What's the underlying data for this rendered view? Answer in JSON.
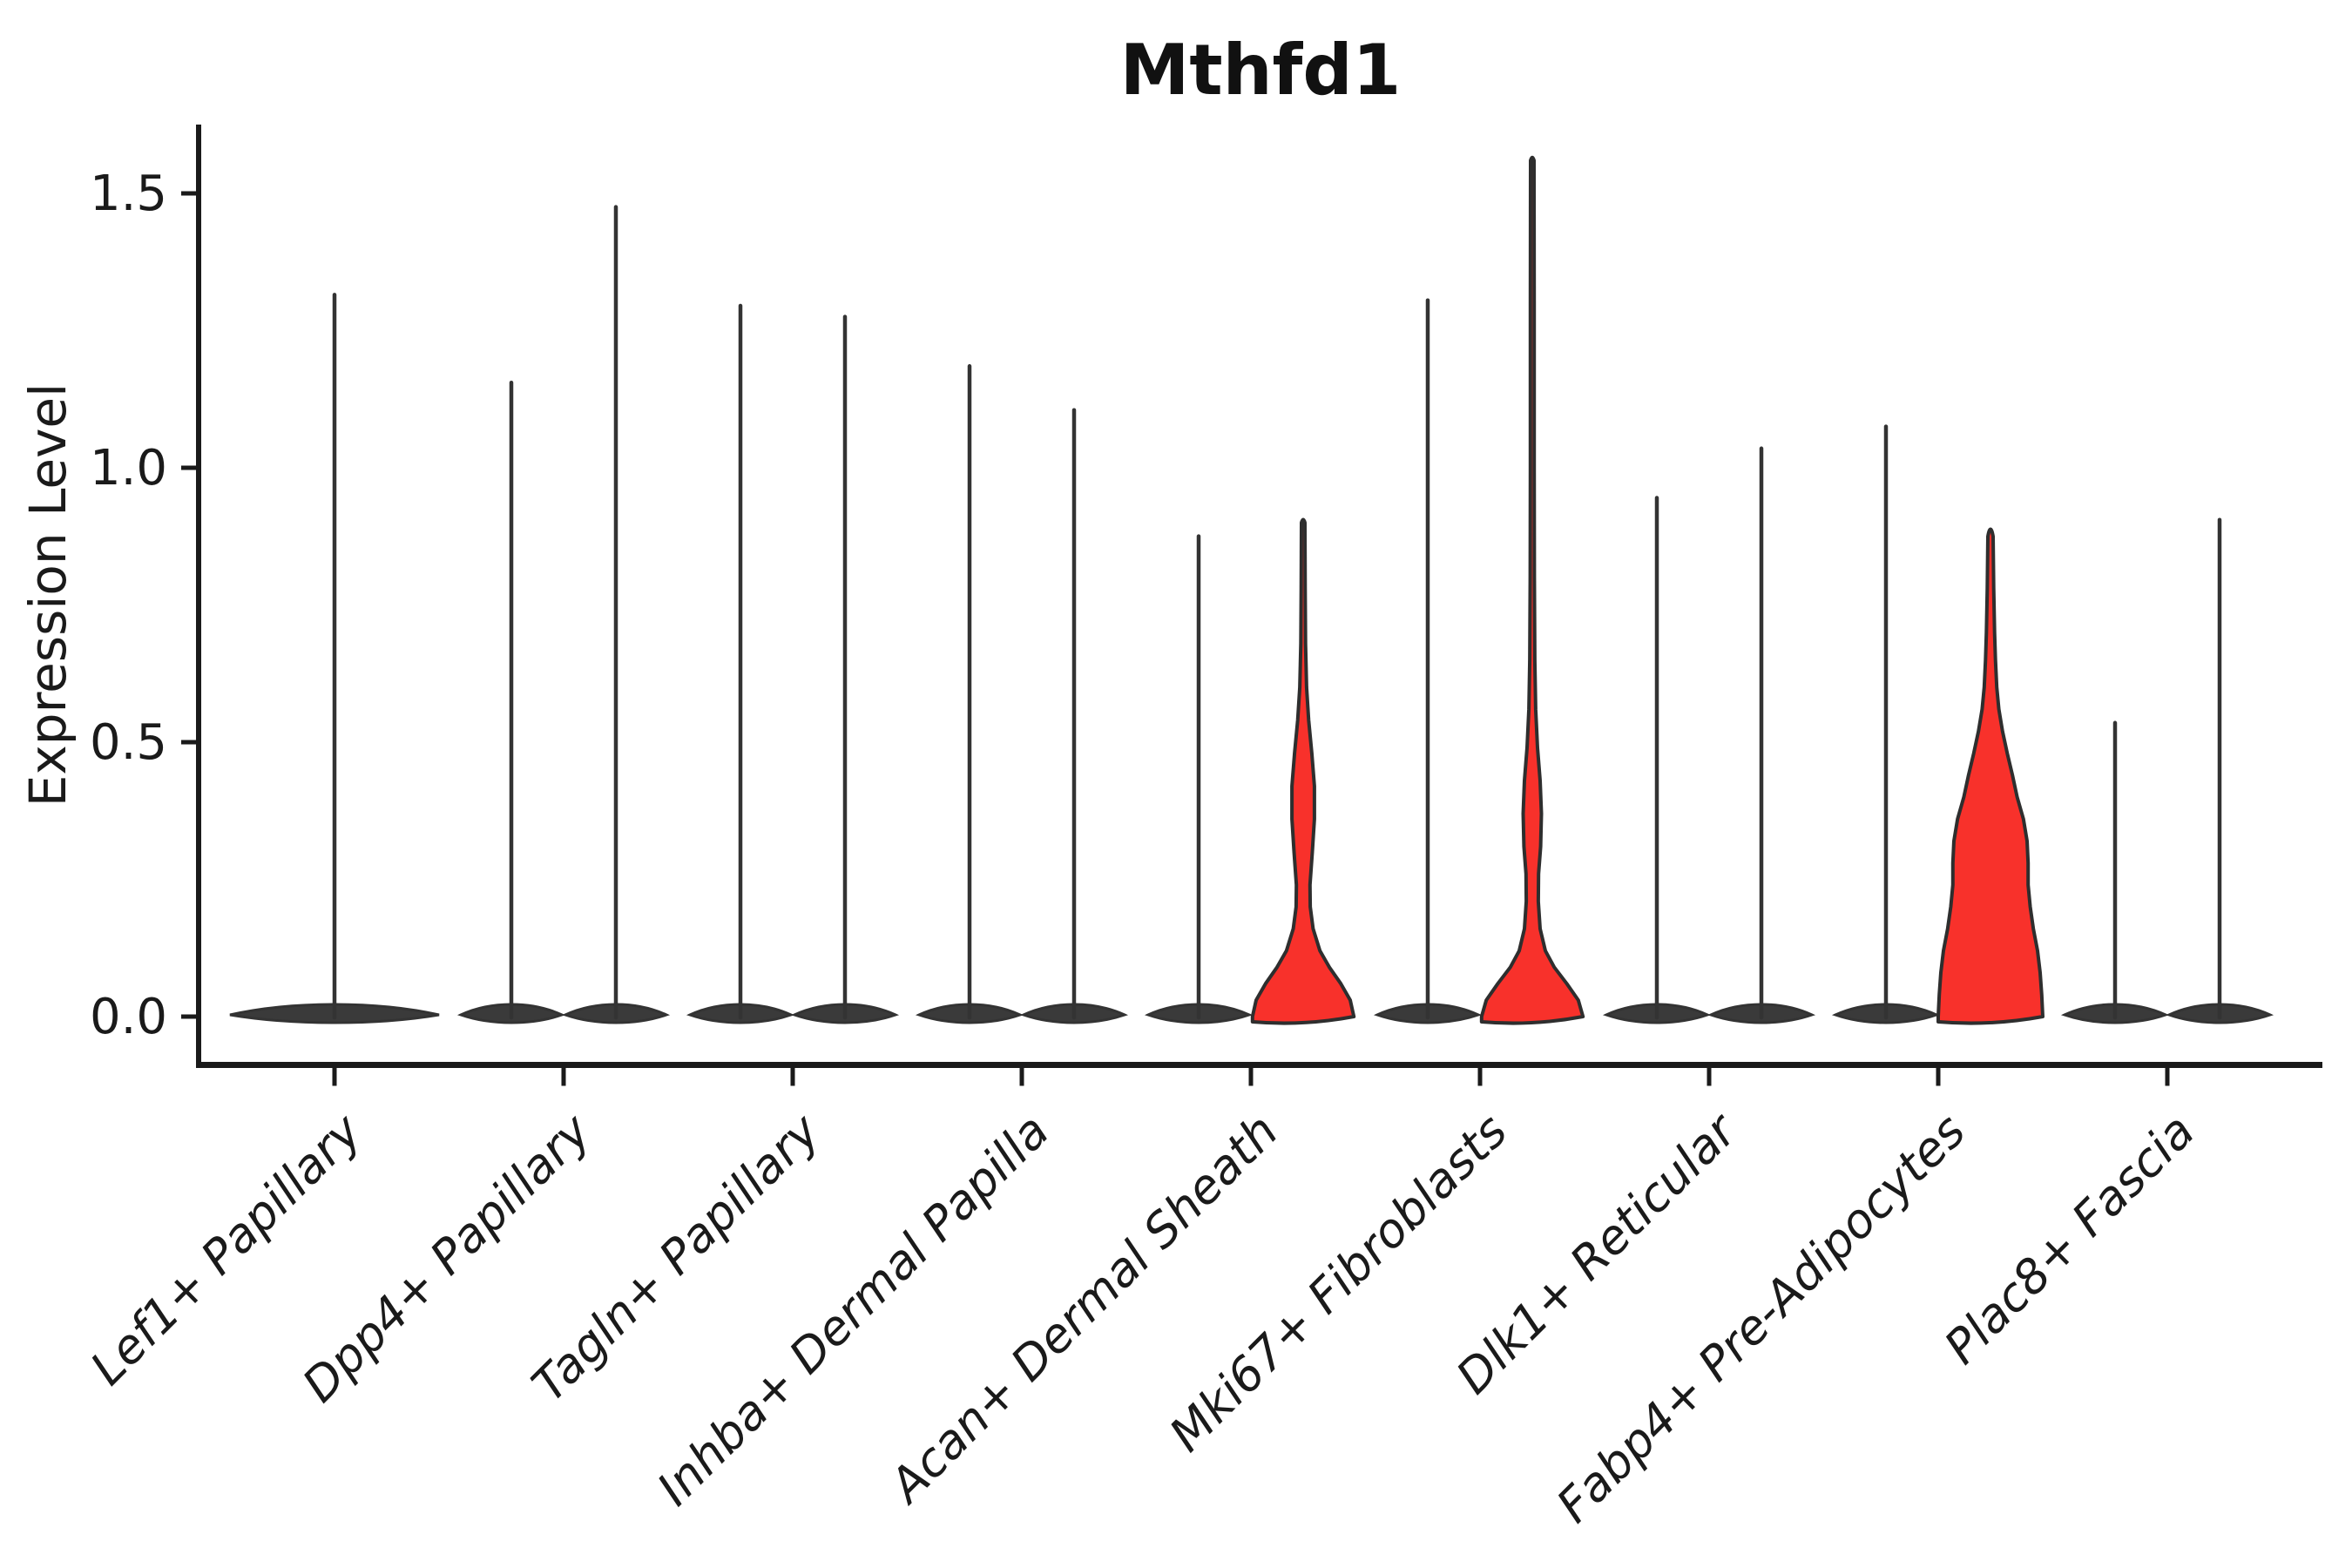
{
  "chart_data": {
    "type": "violin",
    "title": "Mthfd1",
    "xlabel": "",
    "ylabel": "Expression Level",
    "ylim": [
      -0.09,
      1.63
    ],
    "yticks": [
      0.0,
      0.5,
      1.0,
      1.5
    ],
    "ytick_labels": [
      "0.0",
      "0.5",
      "1.0",
      "1.5"
    ],
    "grid": false,
    "legend_position": "none",
    "categories": [
      "Lef1+ Papillary",
      "Dpp4+ Papillary",
      "Tagln+ Papillary",
      "Inhba+ Dermal Papilla",
      "Acan+ Dermal Sheath",
      "Mki67+ Fibroblasts",
      "Dlk1+ Reticular",
      "Fabp4+ Pre-Adipocytes",
      "Plac8+ Fascia"
    ],
    "violins_per_category": 2,
    "colors": {
      "highlight_fill": "#f8312b",
      "violin_band_fill": "#3a3a3a",
      "outline": "#2e2e2e",
      "spike": "#333333",
      "axis": "#1a1a1a"
    },
    "violins": [
      {
        "category_index": 0,
        "slot": "single",
        "max_expression": 1.32,
        "style": "spike",
        "highlighted": false
      },
      {
        "category_index": 1,
        "slot": "left",
        "max_expression": 1.16,
        "style": "spike",
        "highlighted": false
      },
      {
        "category_index": 1,
        "slot": "right",
        "max_expression": 1.48,
        "style": "spike",
        "highlighted": false
      },
      {
        "category_index": 2,
        "slot": "left",
        "max_expression": 1.3,
        "style": "spike",
        "highlighted": false
      },
      {
        "category_index": 2,
        "slot": "right",
        "max_expression": 1.28,
        "style": "spike",
        "highlighted": false
      },
      {
        "category_index": 3,
        "slot": "left",
        "max_expression": 1.19,
        "style": "spike",
        "highlighted": false
      },
      {
        "category_index": 3,
        "slot": "right",
        "max_expression": 1.11,
        "style": "spike",
        "highlighted": false
      },
      {
        "category_index": 4,
        "slot": "left",
        "max_expression": 0.88,
        "style": "spike",
        "highlighted": false
      },
      {
        "category_index": 4,
        "slot": "right",
        "max_expression": 0.9,
        "style": "bulge",
        "highlighted": true,
        "profile": "acan_right"
      },
      {
        "category_index": 5,
        "slot": "left",
        "max_expression": 1.31,
        "style": "spike",
        "highlighted": false
      },
      {
        "category_index": 5,
        "slot": "right",
        "max_expression": 1.56,
        "style": "bulge",
        "highlighted": true,
        "profile": "mki67_right"
      },
      {
        "category_index": 6,
        "slot": "left",
        "max_expression": 0.95,
        "style": "spike",
        "highlighted": false
      },
      {
        "category_index": 6,
        "slot": "right",
        "max_expression": 1.04,
        "style": "spike",
        "highlighted": false
      },
      {
        "category_index": 7,
        "slot": "left",
        "max_expression": 1.08,
        "style": "spike",
        "highlighted": false
      },
      {
        "category_index": 7,
        "slot": "right",
        "max_expression": 0.89,
        "style": "bulge",
        "highlighted": true,
        "profile": "fabp4_right"
      },
      {
        "category_index": 8,
        "slot": "left",
        "max_expression": 0.54,
        "style": "spike",
        "highlighted": false
      },
      {
        "category_index": 8,
        "slot": "right",
        "max_expression": 0.91,
        "style": "spike",
        "highlighted": false
      }
    ],
    "profiles": {
      "acan_right": [
        [
          0,
          0.97
        ],
        [
          0.03,
          0.9
        ],
        [
          0.06,
          0.72
        ],
        [
          0.09,
          0.5
        ],
        [
          0.12,
          0.32
        ],
        [
          0.16,
          0.19
        ],
        [
          0.2,
          0.135
        ],
        [
          0.24,
          0.13
        ],
        [
          0.3,
          0.175
        ],
        [
          0.36,
          0.215
        ],
        [
          0.42,
          0.215
        ],
        [
          0.48,
          0.165
        ],
        [
          0.54,
          0.105
        ],
        [
          0.6,
          0.065
        ],
        [
          0.68,
          0.045
        ],
        [
          0.78,
          0.038
        ],
        [
          0.9,
          0.034
        ]
      ],
      "mki67_right": [
        [
          0,
          0.97
        ],
        [
          0.03,
          0.88
        ],
        [
          0.06,
          0.66
        ],
        [
          0.09,
          0.42
        ],
        [
          0.12,
          0.25
        ],
        [
          0.16,
          0.15
        ],
        [
          0.21,
          0.115
        ],
        [
          0.26,
          0.12
        ],
        [
          0.31,
          0.16
        ],
        [
          0.37,
          0.175
        ],
        [
          0.43,
          0.15
        ],
        [
          0.49,
          0.1
        ],
        [
          0.56,
          0.065
        ],
        [
          0.65,
          0.048
        ],
        [
          0.8,
          0.04
        ],
        [
          1.0,
          0.036
        ],
        [
          1.3,
          0.036
        ],
        [
          1.56,
          0.034
        ]
      ],
      "fabp4_right": [
        [
          0,
          1.0
        ],
        [
          0.04,
          0.98
        ],
        [
          0.08,
          0.95
        ],
        [
          0.12,
          0.9
        ],
        [
          0.16,
          0.82
        ],
        [
          0.2,
          0.76
        ],
        [
          0.24,
          0.72
        ],
        [
          0.28,
          0.72
        ],
        [
          0.32,
          0.7
        ],
        [
          0.36,
          0.63
        ],
        [
          0.4,
          0.51
        ],
        [
          0.44,
          0.42
        ],
        [
          0.48,
          0.32
        ],
        [
          0.52,
          0.23
        ],
        [
          0.56,
          0.16
        ],
        [
          0.6,
          0.12
        ],
        [
          0.65,
          0.095
        ],
        [
          0.7,
          0.078
        ],
        [
          0.78,
          0.062
        ],
        [
          0.875,
          0.05
        ]
      ]
    }
  }
}
